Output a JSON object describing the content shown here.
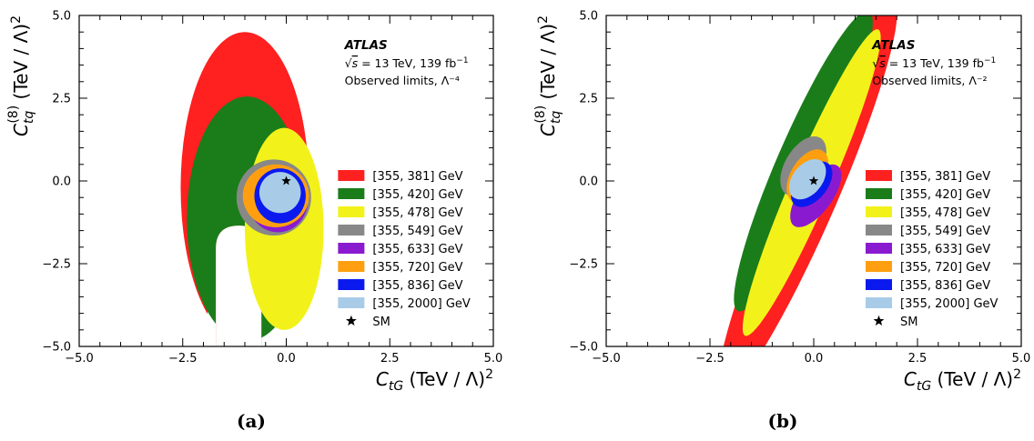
{
  "chart_data": [
    {
      "type": "contour",
      "panel_label": "(a)",
      "atlas_label": "ATLAS",
      "energy_label": "√s = 13 TeV, 139 fb⁻¹",
      "limits_label": "Observed limits, Λ⁻⁴",
      "xlabel": "C_tG (TeV / Λ)²",
      "ylabel": "C_tq^(8) (TeV / Λ)²",
      "xlim": [
        -5.0,
        5.0
      ],
      "ylim": [
        -5.0,
        5.0
      ],
      "xticks": [
        "−5.0",
        "−2.5",
        "0.0",
        "2.5",
        "5.0"
      ],
      "yticks": [
        "−5.0",
        "−2.5",
        "0.0",
        "2.5",
        "5.0"
      ],
      "legend_position": "right",
      "series": [
        {
          "name": "[355, 381] GeV",
          "color": "#ff2020",
          "cx": -1.0,
          "cy": -0.2,
          "rx": 1.55,
          "ry": 4.7,
          "hole": {
            "cx": -1.15,
            "top": -1.2,
            "halfwidth": 0.75
          }
        },
        {
          "name": "[355, 420] GeV",
          "color": "#1a7d1a",
          "cx": -0.95,
          "cy": -1.15,
          "rx": 1.45,
          "ry": 3.7,
          "hole": {
            "cx": -1.15,
            "top": -1.35,
            "halfwidth": 0.55
          }
        },
        {
          "name": "[355, 478] GeV",
          "color": "#f2f21a",
          "cx": -0.05,
          "cy": -1.45,
          "rx": 0.95,
          "ry": 3.05
        },
        {
          "name": "[355, 549] GeV",
          "color": "#888888",
          "cx": -0.3,
          "cy": -0.5,
          "rx": 0.9,
          "ry": 1.15
        },
        {
          "name": "[355, 633] GeV",
          "color": "#8a1ad0",
          "cx": -0.2,
          "cy": -0.6,
          "rx": 0.72,
          "ry": 0.95
        },
        {
          "name": "[355, 720] GeV",
          "color": "#ff9f10",
          "cx": -0.25,
          "cy": -0.45,
          "rx": 0.8,
          "ry": 0.95
        },
        {
          "name": "[355, 836] GeV",
          "color": "#0a1aee",
          "cx": -0.15,
          "cy": -0.45,
          "rx": 0.62,
          "ry": 0.83
        },
        {
          "name": "[355, 2000] GeV",
          "color": "#a8cce8",
          "cx": -0.15,
          "cy": -0.35,
          "rx": 0.5,
          "ry": 0.62
        }
      ],
      "sm": {
        "name": "SM",
        "x": 0.0,
        "y": 0.0
      }
    },
    {
      "type": "contour",
      "panel_label": "(b)",
      "atlas_label": "ATLAS",
      "energy_label": "√s = 13 TeV, 139 fb⁻¹",
      "limits_label": "Observed limits, Λ⁻²",
      "xlabel": "C_tG (TeV / Λ)²",
      "ylabel": "C_tq^(8) (TeV / Λ)²",
      "xlim": [
        -5.0,
        5.0
      ],
      "ylim": [
        -5.0,
        5.0
      ],
      "xticks": [
        "−5.0",
        "−2.5",
        "0.0",
        "2.5",
        "5.0"
      ],
      "yticks": [
        "−5.0",
        "−2.5",
        "0.0",
        "2.5",
        "5.0"
      ],
      "legend_position": "right",
      "series": [
        {
          "name": "[355, 381] GeV",
          "color": "#ff2020",
          "cx": -0.15,
          "cy": -0.5,
          "along": 6.3,
          "across": 0.72,
          "angle": 71
        },
        {
          "name": "[355, 420] GeV",
          "color": "#1a7d1a",
          "cx": -0.25,
          "cy": 0.6,
          "along": 4.8,
          "across": 0.63,
          "angle": 71
        },
        {
          "name": "[355, 478] GeV",
          "color": "#f2f21a",
          "cx": -0.05,
          "cy": -0.05,
          "along": 4.9,
          "across": 0.5,
          "angle": 71
        },
        {
          "name": "[355, 549] GeV",
          "color": "#888888",
          "cx": -0.25,
          "cy": 0.45,
          "along": 0.95,
          "across": 0.46,
          "angle": 68
        },
        {
          "name": "[355, 633] GeV",
          "color": "#8a1ad0",
          "cx": 0.05,
          "cy": -0.45,
          "along": 1.05,
          "across": 0.42,
          "angle": 62
        },
        {
          "name": "[355, 720] GeV",
          "color": "#ff9f10",
          "cx": -0.15,
          "cy": 0.15,
          "along": 0.85,
          "across": 0.42,
          "angle": 68
        },
        {
          "name": "[355, 836] GeV",
          "color": "#0a1aee",
          "cx": -0.05,
          "cy": -0.1,
          "along": 0.75,
          "across": 0.4,
          "angle": 62
        },
        {
          "name": "[355, 2000] GeV",
          "color": "#a8cce8",
          "cx": -0.15,
          "cy": 0.05,
          "along": 0.65,
          "across": 0.38,
          "angle": 64
        }
      ],
      "sm": {
        "name": "SM",
        "x": 0.0,
        "y": 0.0
      }
    }
  ]
}
